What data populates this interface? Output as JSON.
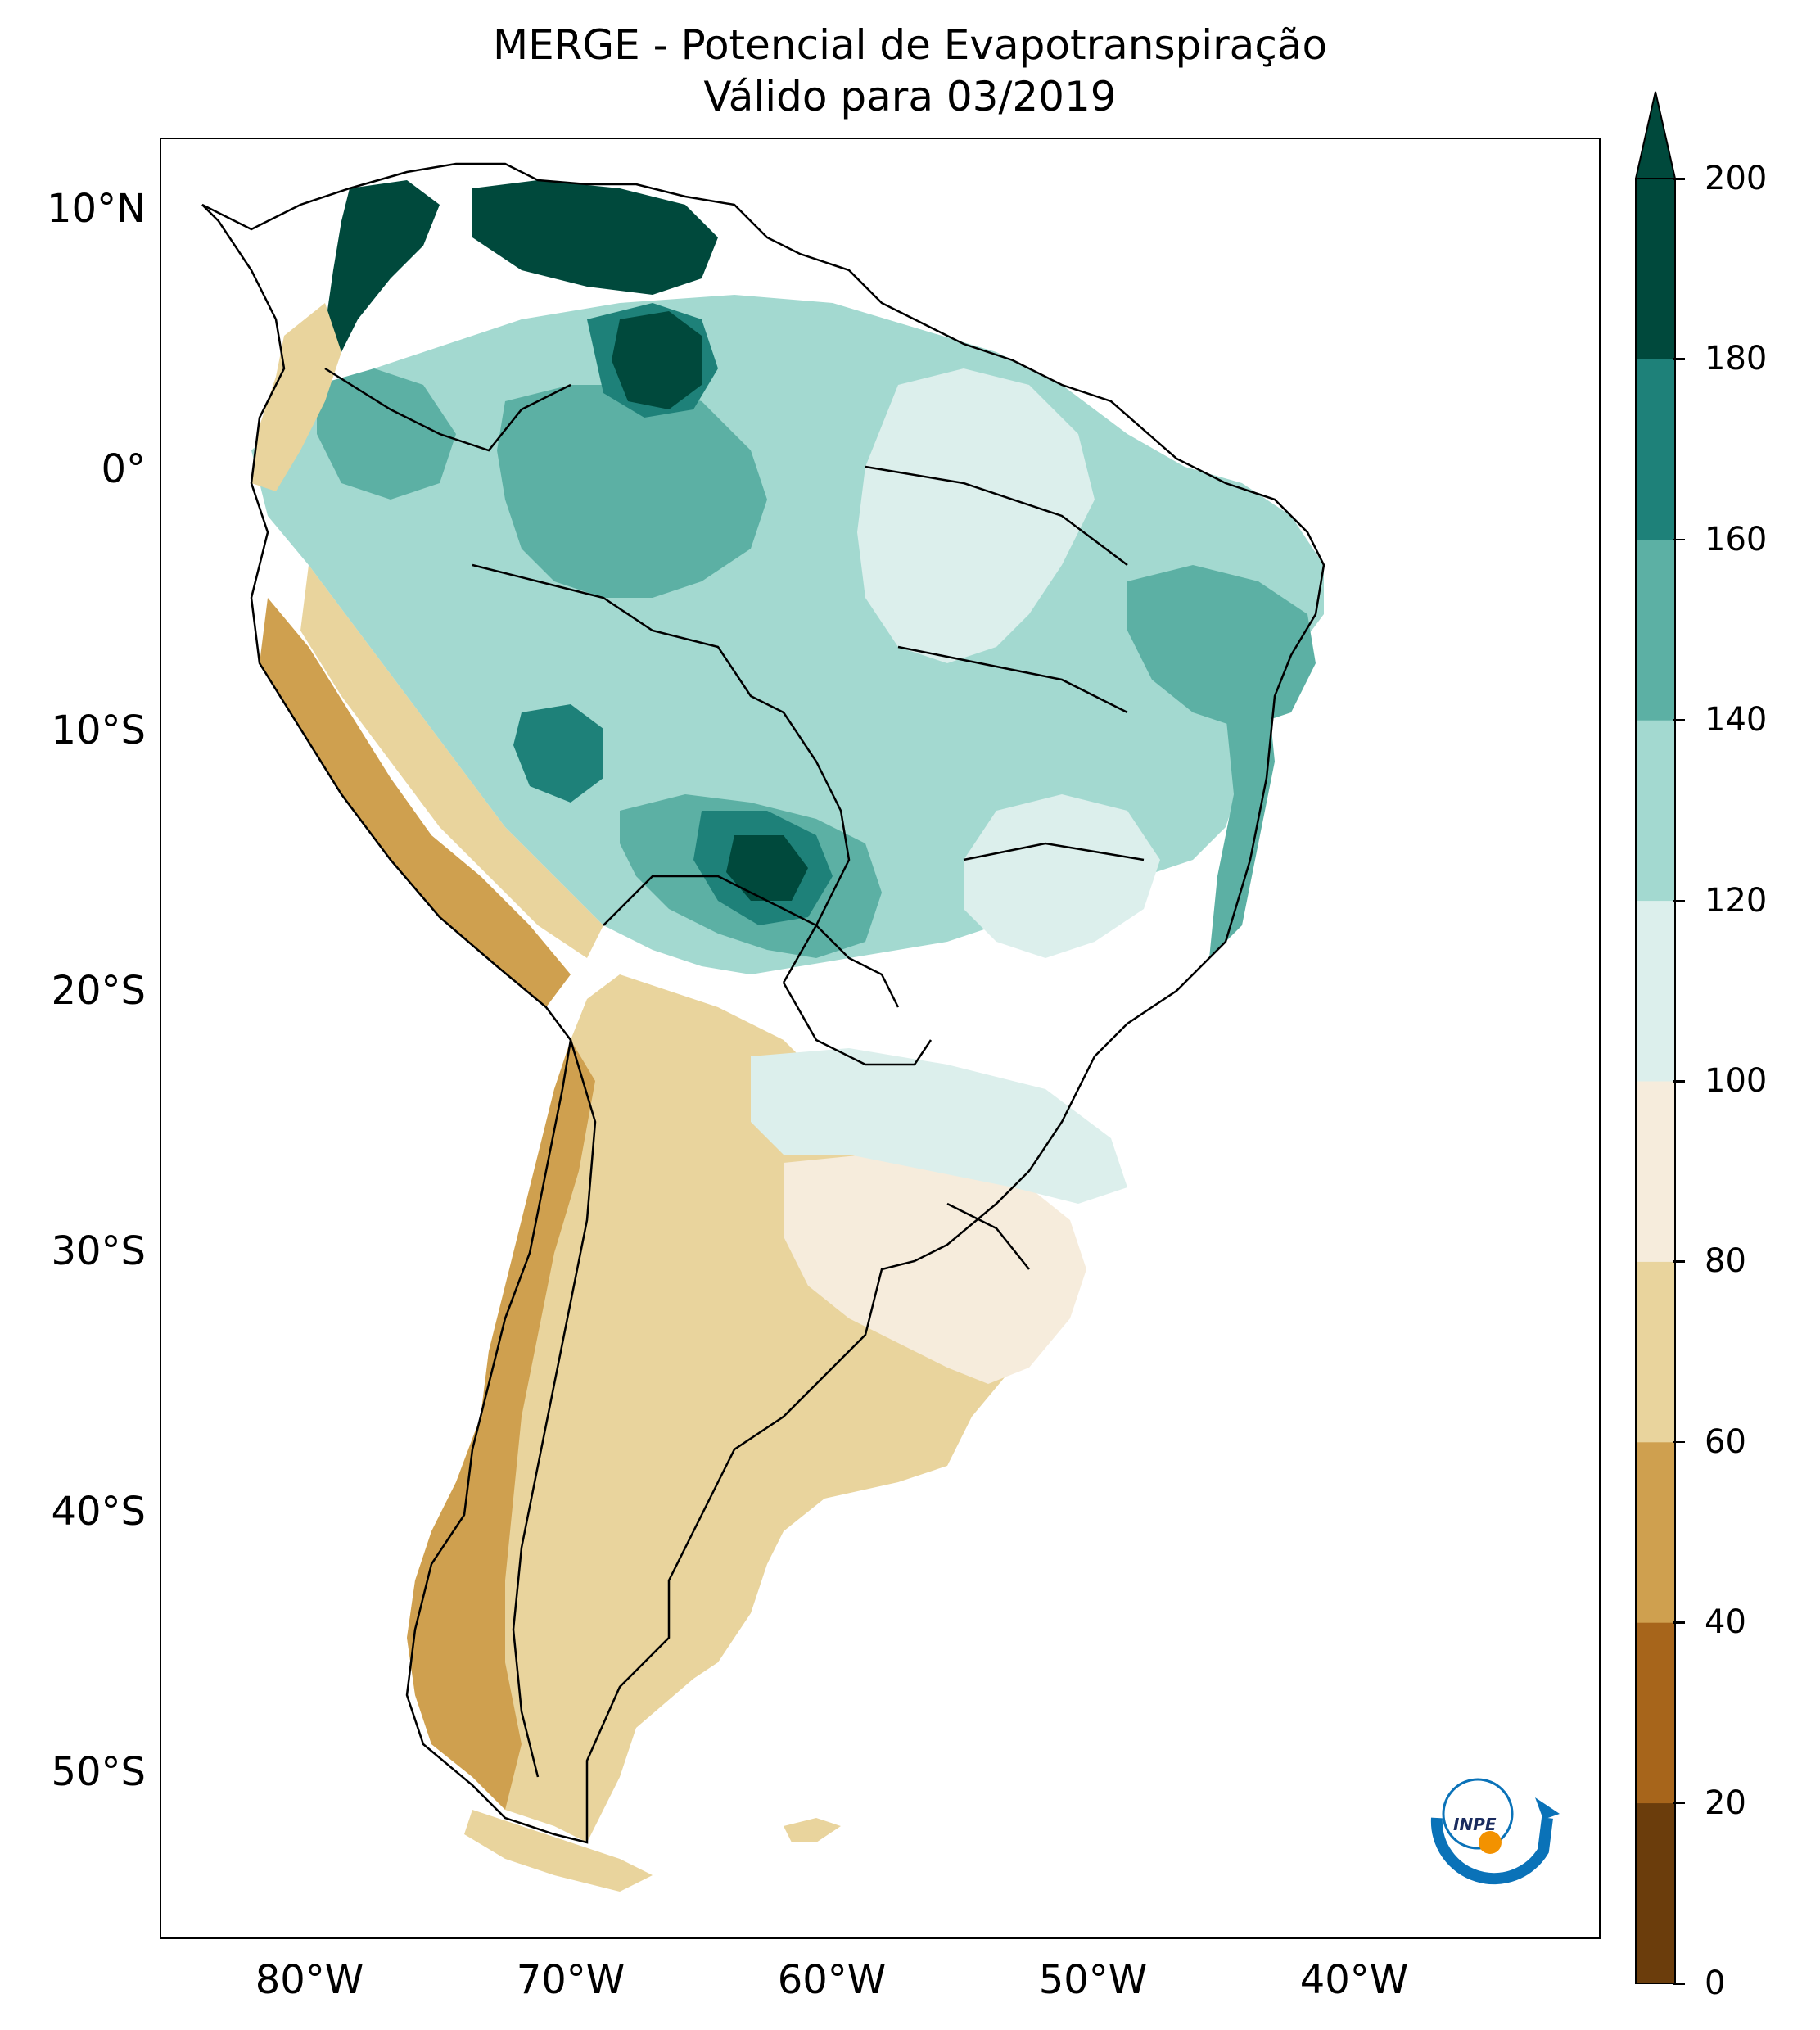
{
  "title": {
    "line1": "MERGE - Potencial de Evapotranspiração",
    "line2": "Válido para 03/2019"
  },
  "map": {
    "region": "South America",
    "variable": "Potencial de Evapotranspiração",
    "lat_labels": [
      "10°N",
      "0°",
      "10°S",
      "20°S",
      "30°S",
      "40°S",
      "50°S"
    ],
    "lon_labels": [
      "80°W",
      "70°W",
      "60°W",
      "50°W",
      "40°W"
    ],
    "lat_range": [
      -56,
      12
    ],
    "lon_range": [
      -85,
      -30
    ]
  },
  "colorbar": {
    "ticks": [
      "0",
      "20",
      "40",
      "60",
      "80",
      "100",
      "120",
      "140",
      "160",
      "180",
      "200"
    ],
    "levels": [
      {
        "from": 0,
        "to": 20,
        "color": "#6b3d0c"
      },
      {
        "from": 20,
        "to": 40,
        "color": "#a7651b"
      },
      {
        "from": 40,
        "to": 60,
        "color": "#cfa04f"
      },
      {
        "from": 60,
        "to": 80,
        "color": "#e9d49d"
      },
      {
        "from": 80,
        "to": 100,
        "color": "#f6ecdc"
      },
      {
        "from": 100,
        "to": 120,
        "color": "#dcefec"
      },
      {
        "from": 120,
        "to": 140,
        "color": "#a3d9d0"
      },
      {
        "from": 140,
        "to": 160,
        "color": "#5cb0a4"
      },
      {
        "from": 160,
        "to": 180,
        "color": "#1e8179"
      },
      {
        "from": 180,
        "to": 200,
        "color": "#00493c"
      }
    ],
    "extend": "max"
  },
  "logo": {
    "text": "INPE",
    "name": "inpe-logo"
  }
}
